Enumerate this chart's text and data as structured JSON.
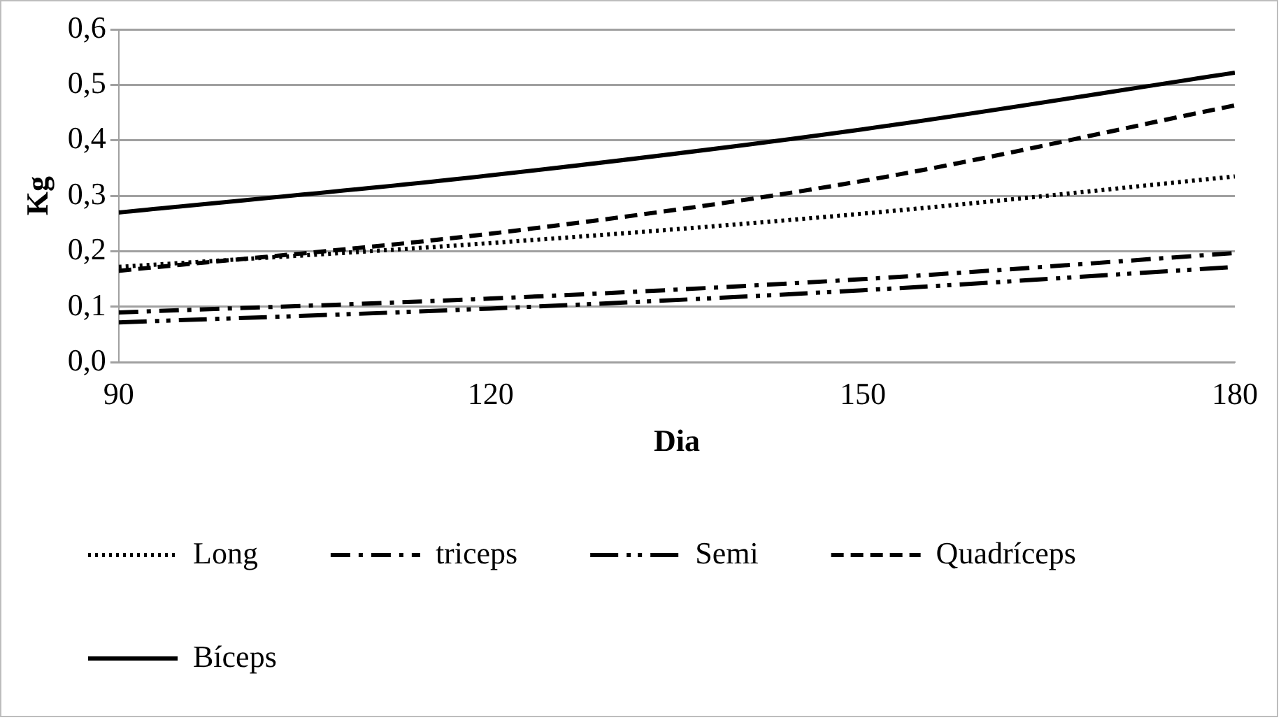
{
  "chart_data": {
    "type": "line",
    "xlabel": "Dia",
    "ylabel": "Kg",
    "x": [
      90,
      120,
      150,
      180
    ],
    "series": [
      {
        "name": "Long",
        "color": "#000000",
        "line_style": "dotted",
        "values": [
          0.172,
          0.215,
          0.268,
          0.335
        ]
      },
      {
        "name": "triceps",
        "color": "#000000",
        "line_style": "dashdot",
        "values": [
          0.09,
          0.115,
          0.15,
          0.197
        ]
      },
      {
        "name": "Semi",
        "color": "#000000",
        "line_style": "longdashdotdot",
        "values": [
          0.072,
          0.097,
          0.13,
          0.172
        ]
      },
      {
        "name": "Quadríceps",
        "color": "#000000",
        "line_style": "dashed",
        "values": [
          0.165,
          0.232,
          0.327,
          0.463
        ]
      },
      {
        "name": "Bíceps",
        "color": "#000000",
        "line_style": "solid",
        "values": [
          0.27,
          0.337,
          0.42,
          0.522
        ]
      }
    ],
    "xlim": [
      90,
      180
    ],
    "xticks": [
      90,
      120,
      150,
      180
    ],
    "ylim": [
      0,
      0.6
    ],
    "yticks": [
      {
        "value": 0,
        "label": "0,0"
      },
      {
        "value": 0.1,
        "label": "0,1"
      },
      {
        "value": 0.2,
        "label": "0,2"
      },
      {
        "value": 0.3,
        "label": "0,3"
      },
      {
        "value": 0.4,
        "label": "0,4"
      },
      {
        "value": 0.5,
        "label": "0,5"
      },
      {
        "value": 0.6,
        "label": "0,6"
      }
    ],
    "grid": "y",
    "legend": "bottom",
    "marker": "none"
  }
}
